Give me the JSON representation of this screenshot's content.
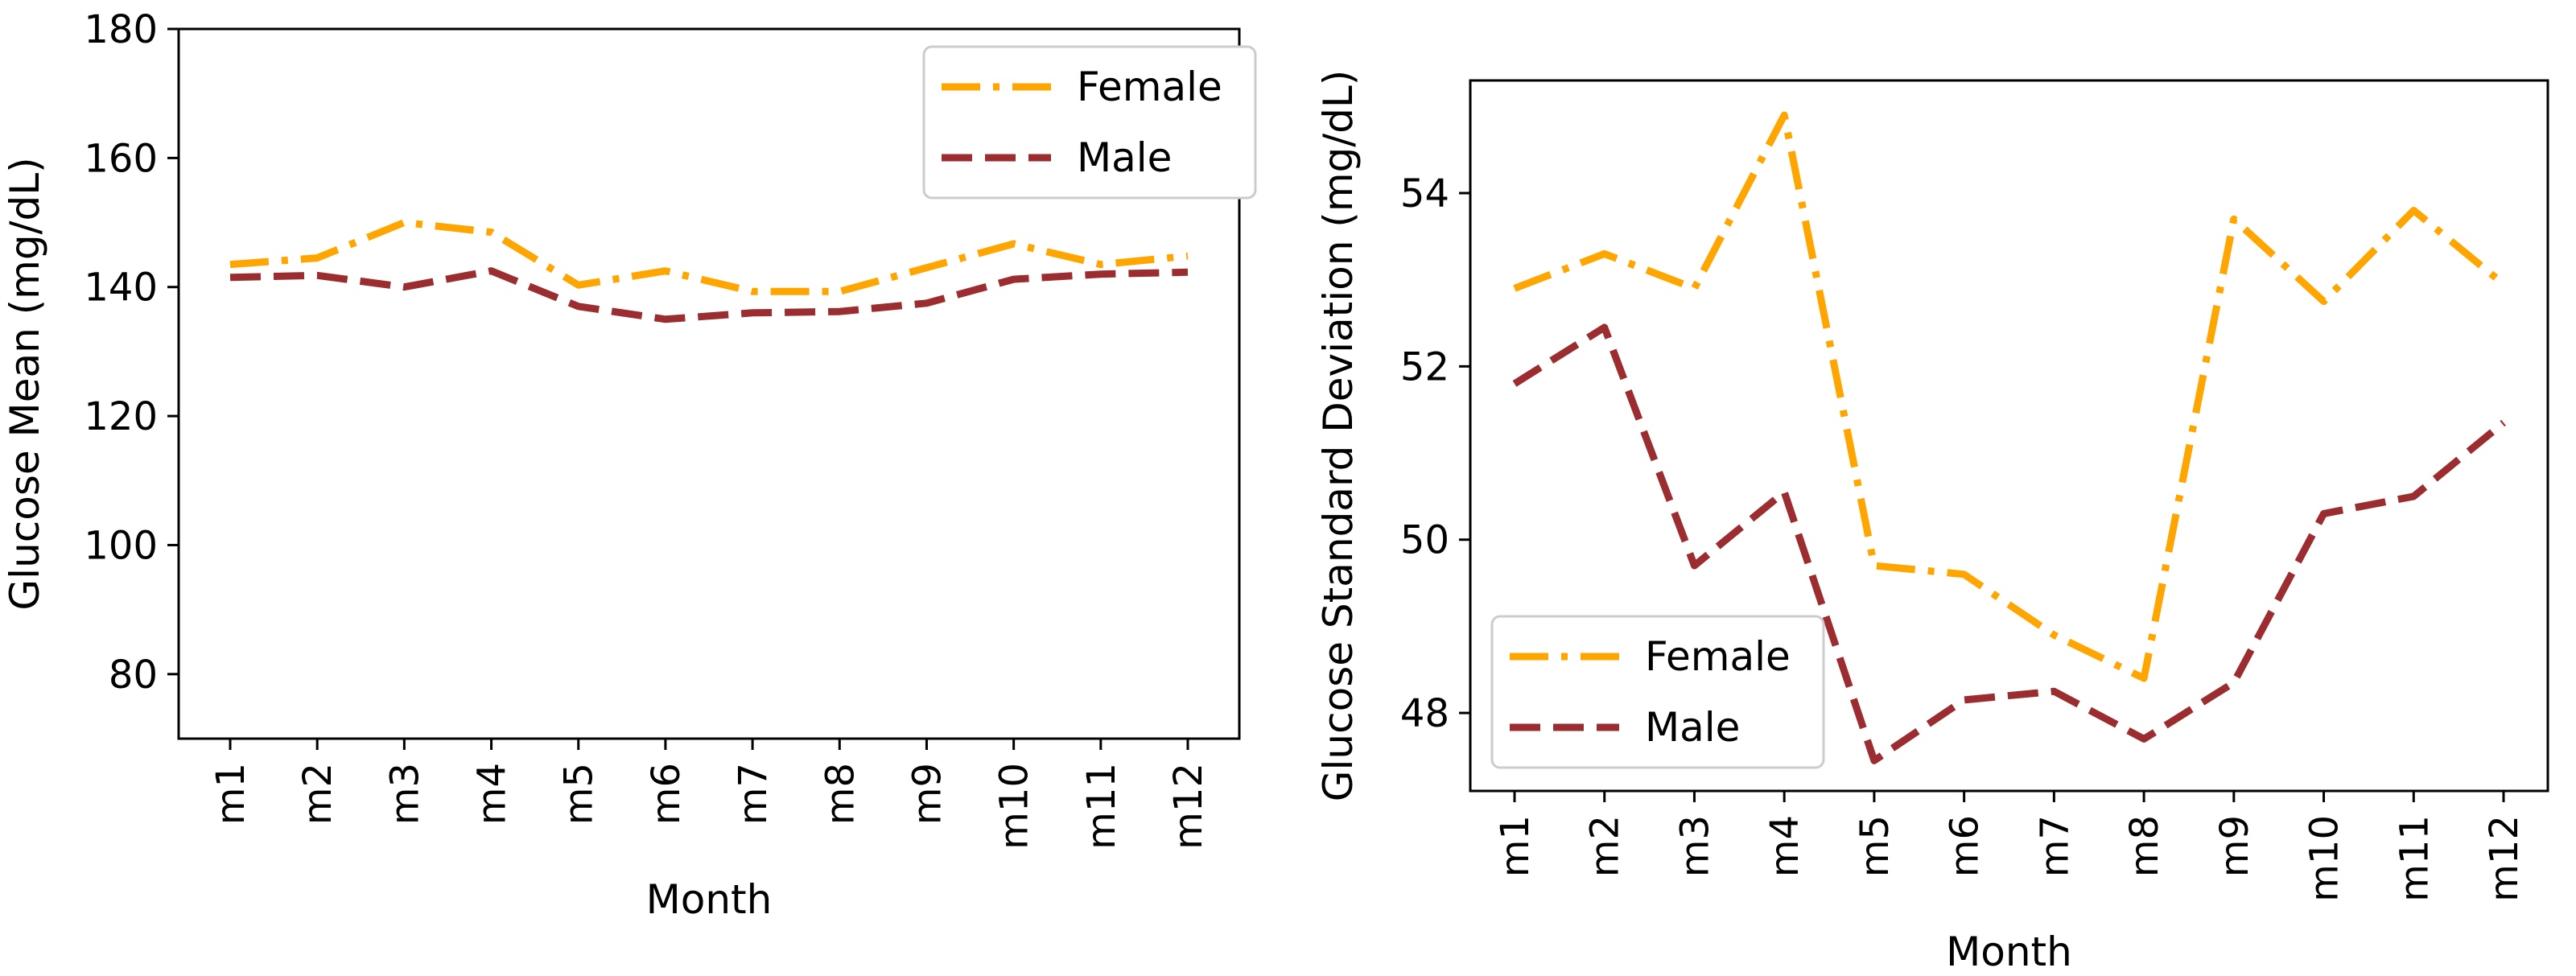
{
  "chart_data": [
    {
      "type": "line",
      "title": "",
      "xlabel": "Month",
      "ylabel": "Glucose Mean (mg/dL)",
      "categories": [
        "m1",
        "m2",
        "m3",
        "m4",
        "m5",
        "m6",
        "m7",
        "m8",
        "m9",
        "m10",
        "m11",
        "m12"
      ],
      "ylim": [
        70,
        180
      ],
      "yticks": [
        80,
        100,
        120,
        140,
        160,
        180
      ],
      "yticks_text": [
        "80",
        "100",
        "120",
        "140",
        "160",
        "180"
      ],
      "legend_position": "top-right",
      "series": [
        {
          "name": "Female",
          "color": "#FFA500",
          "style": "dash-dot",
          "values": [
            143.5,
            144.5,
            150,
            148.5,
            140.3,
            142.5,
            139.3,
            139.3,
            143,
            146.7,
            143.5,
            144.8
          ]
        },
        {
          "name": "Male",
          "color": "#9B2D30",
          "style": "dashed",
          "values": [
            141.5,
            141.8,
            140,
            142.5,
            137,
            135,
            136,
            136.2,
            137.5,
            141.2,
            142,
            142.3
          ]
        }
      ]
    },
    {
      "type": "line",
      "title": "",
      "xlabel": "Month",
      "ylabel": "Glucose Standard Deviation (mg/dL)",
      "categories": [
        "m1",
        "m2",
        "m3",
        "m4",
        "m5",
        "m6",
        "m7",
        "m8",
        "m9",
        "m10",
        "m11",
        "m12"
      ],
      "ylim": [
        47.1,
        55.3
      ],
      "yticks": [
        48,
        50,
        52,
        54
      ],
      "yticks_text": [
        "48",
        "50",
        "52",
        "54"
      ],
      "legend_position": "lower-left",
      "series": [
        {
          "name": "Female",
          "color": "#FFA500",
          "style": "dash-dot",
          "values": [
            52.9,
            53.3,
            52.9,
            54.9,
            49.7,
            49.6,
            48.9,
            48.4,
            53.7,
            52.75,
            53.8,
            52.95
          ]
        },
        {
          "name": "Male",
          "color": "#9B2D30",
          "style": "dashed",
          "values": [
            51.8,
            52.45,
            49.7,
            50.55,
            47.45,
            48.15,
            48.25,
            47.7,
            48.35,
            50.3,
            50.5,
            51.35
          ]
        }
      ]
    }
  ]
}
